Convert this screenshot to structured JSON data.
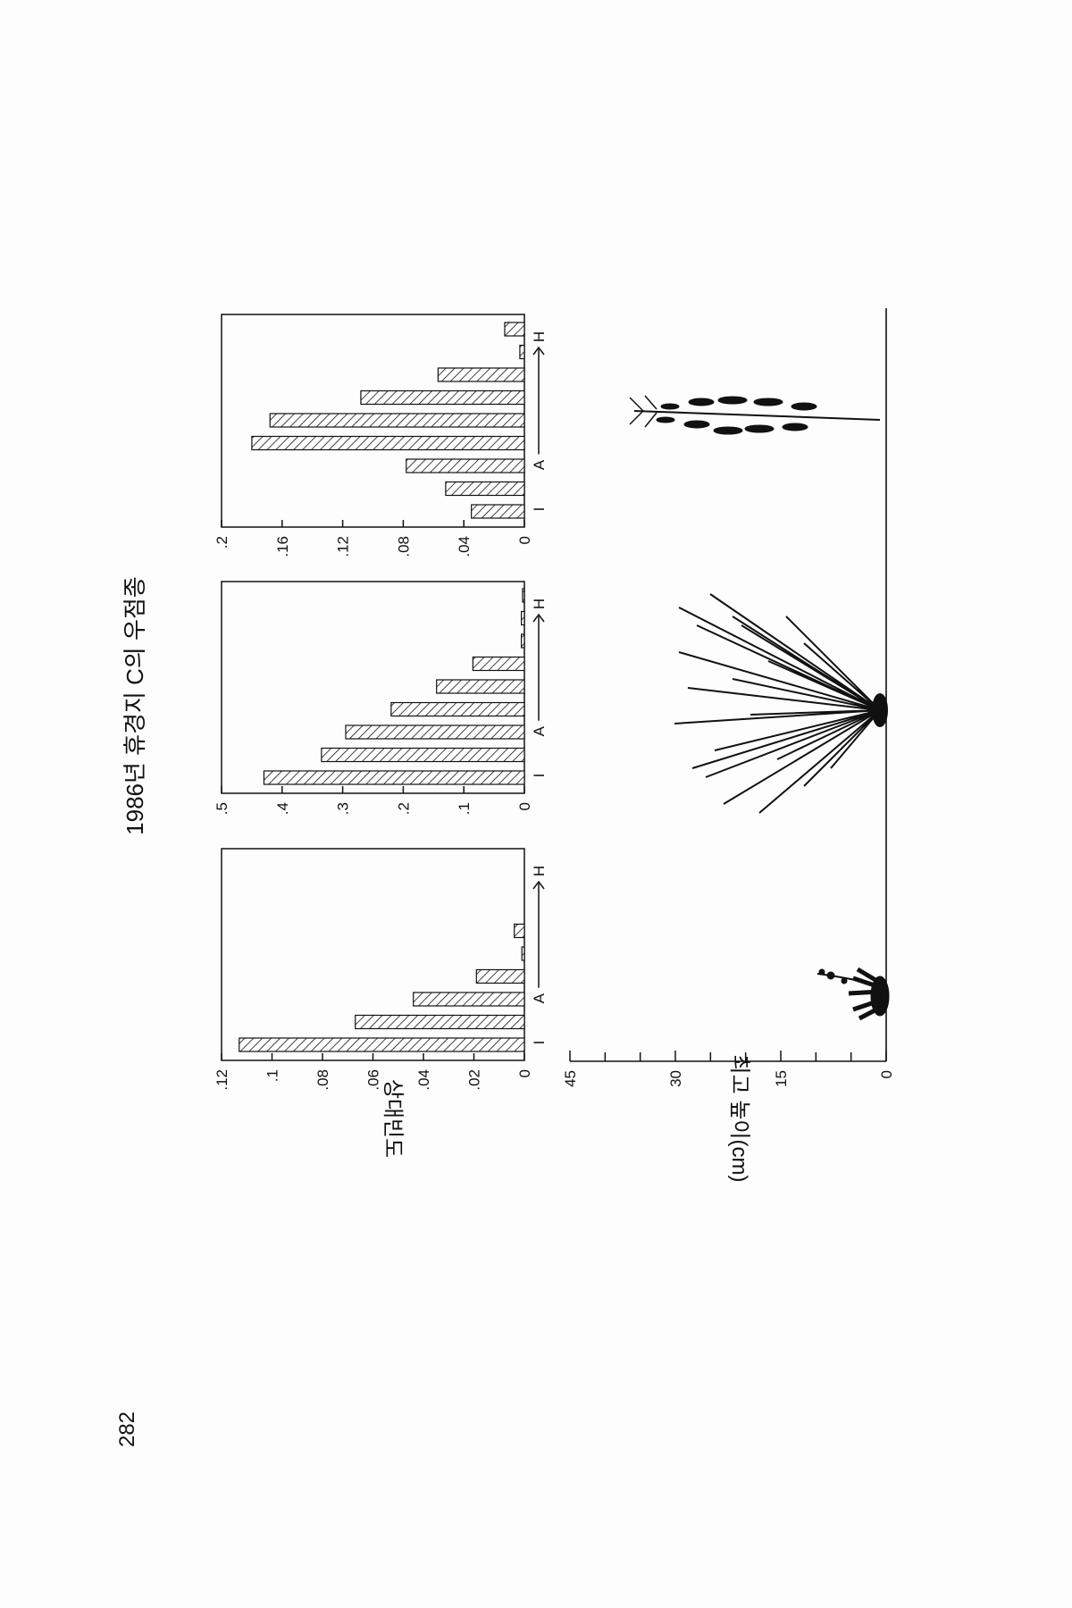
{
  "page_number": "282",
  "title": "1986년 휴경지 C의 우점종",
  "y_axis_label_top": "상대빈도",
  "y_axis_label_bottom": "최고 높이(cm)",
  "colors": {
    "bar_fill": "#ffffff",
    "hatch": "#111111",
    "ink": "#111111"
  },
  "chart_data": [
    {
      "type": "bar",
      "ylabel": "상대빈도",
      "ylim": [
        0,
        0.12
      ],
      "ticks": [
        0,
        0.02,
        0.04,
        0.06,
        0.08,
        0.1,
        0.12
      ],
      "tick_labels": [
        "0",
        ".02",
        ".04",
        ".06",
        ".08",
        ".1",
        ".12"
      ],
      "x_labels": [
        "I",
        "A",
        "H"
      ],
      "values": [
        0.113,
        0.067,
        0.044,
        0.019,
        0.001,
        0.004
      ]
    },
    {
      "type": "bar",
      "ylabel": "",
      "ylim": [
        0,
        0.5
      ],
      "ticks": [
        0,
        0.1,
        0.2,
        0.3,
        0.4,
        0.5
      ],
      "tick_labels": [
        "0",
        ".1",
        ".2",
        ".3",
        ".4",
        ".5"
      ],
      "x_labels": [
        "I",
        "A",
        "H"
      ],
      "values": [
        0.43,
        0.335,
        0.295,
        0.22,
        0.145,
        0.085,
        0.005,
        0.005,
        0.003
      ]
    },
    {
      "type": "bar",
      "ylabel": "",
      "ylim": [
        0,
        0.2
      ],
      "ticks": [
        0,
        0.04,
        0.08,
        0.12,
        0.16,
        0.2
      ],
      "tick_labels": [
        "0",
        ".04",
        ".08",
        ".12",
        ".16",
        ".2"
      ],
      "x_labels": [
        "I",
        "A",
        "H"
      ],
      "values": [
        0.035,
        0.052,
        0.078,
        0.18,
        0.168,
        0.108,
        0.057,
        0.003,
        0.013
      ]
    }
  ],
  "height_axis": {
    "ylabel": "최고 높이(cm)",
    "ylim": [
      0,
      45
    ],
    "ticks": [
      0,
      15,
      30,
      45
    ],
    "tick_labels": [
      "0",
      "15",
      "30",
      "45"
    ]
  }
}
